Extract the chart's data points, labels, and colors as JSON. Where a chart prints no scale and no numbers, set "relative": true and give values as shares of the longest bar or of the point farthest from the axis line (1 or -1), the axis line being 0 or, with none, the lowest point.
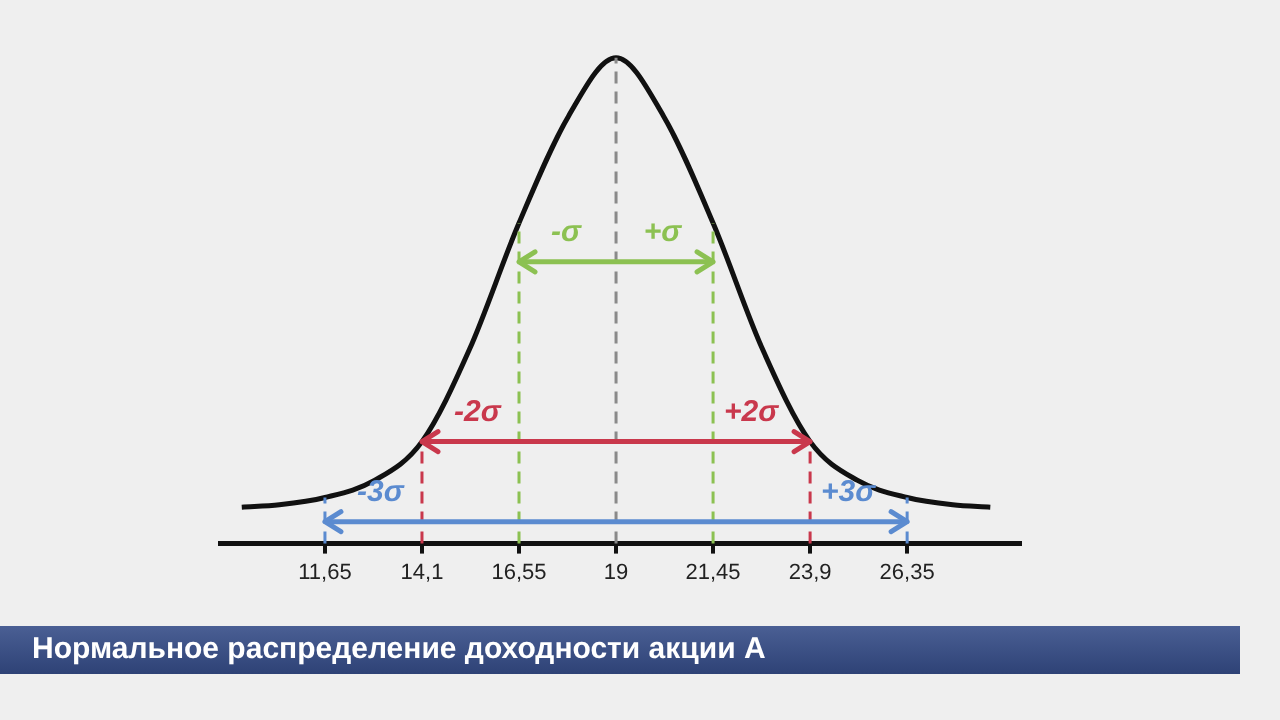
{
  "chart_data": {
    "type": "line",
    "relative": true,
    "title": "Нормальное распределение доходности акции А",
    "x": [
      9.55,
      10.5,
      11.65,
      12.9,
      14.1,
      15.3,
      16.55,
      17.8,
      19,
      20.2,
      21.45,
      22.7,
      23.9,
      25.1,
      26.35,
      27.5,
      28.45
    ],
    "series": [
      {
        "color": "#111111",
        "values": [
          0.075,
          0.08,
          0.095,
          0.13,
          0.21,
          0.4,
          0.66,
          0.88,
          1,
          0.88,
          0.66,
          0.4,
          0.21,
          0.13,
          0.095,
          0.08,
          0.075
        ]
      }
    ],
    "xlim": [
      9,
      29.2
    ],
    "xticks": [
      {
        "value": 11.65,
        "label": "11,65"
      },
      {
        "value": 14.1,
        "label": "14,1"
      },
      {
        "value": 16.55,
        "label": "16,55"
      },
      19,
      {
        "value": 21.45,
        "label": "21,45"
      },
      {
        "value": 23.9,
        "label": "23,9"
      },
      {
        "value": 26.35,
        "label": "26,35"
      }
    ],
    "ref_lines": [
      {
        "axis": "x",
        "value": 19,
        "color": "#8a8a8a",
        "line_style": "dashed"
      },
      {
        "axis": "x",
        "value": 16.55,
        "label": "-σ",
        "color": "#8cc152",
        "line_style": "dashed"
      },
      {
        "axis": "x",
        "value": 21.45,
        "label": "+σ",
        "color": "#8cc152",
        "line_style": "dashed"
      },
      {
        "axis": "x",
        "value": 14.1,
        "label": "-2σ",
        "color": "#c9384c",
        "line_style": "dashed"
      },
      {
        "axis": "x",
        "value": 23.9,
        "label": "+2σ",
        "color": "#c9384c",
        "line_style": "dashed"
      },
      {
        "axis": "x",
        "value": 11.65,
        "label": "-3σ",
        "color": "#5b8bd0",
        "line_style": "dashed"
      },
      {
        "axis": "x",
        "value": 26.35,
        "label": "+3σ",
        "color": "#5b8bd0",
        "line_style": "dashed"
      }
    ],
    "grid": false,
    "legend": false,
    "marker": "none",
    "line_style": "solid"
  }
}
